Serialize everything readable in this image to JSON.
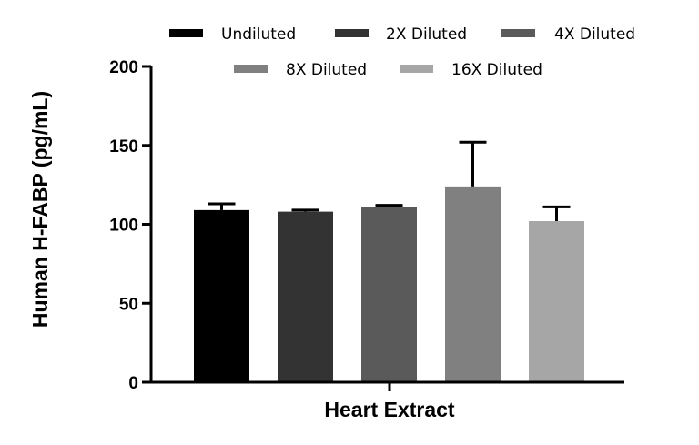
{
  "chart_data": {
    "type": "bar",
    "title": "",
    "xlabel": "Heart Extract",
    "ylabel": "Human H-FABP (pg/mL)",
    "ylim": [
      0,
      200
    ],
    "yticks": [
      0,
      50,
      100,
      150,
      200
    ],
    "grid": false,
    "legend_position": "top",
    "categories": [
      "Heart Extract"
    ],
    "series": [
      {
        "name": "Undiluted",
        "value": 109,
        "error": 4,
        "color": "#000000"
      },
      {
        "name": "2X Diluted",
        "value": 108,
        "error": 1,
        "color": "#333333"
      },
      {
        "name": "4X Diluted",
        "value": 111,
        "error": 1,
        "color": "#5a5a5a"
      },
      {
        "name": "8X Diluted",
        "value": 124,
        "error": 28,
        "color": "#808080"
      },
      {
        "name": "16X Diluted",
        "value": 102,
        "error": 9,
        "color": "#a6a6a6"
      }
    ]
  }
}
